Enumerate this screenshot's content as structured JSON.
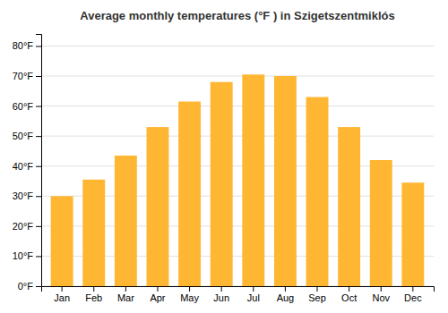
{
  "chart_data": {
    "type": "bar",
    "title": "Average monthly temperatures (°F ) in Szigetszentmiklós",
    "categories": [
      "Jan",
      "Feb",
      "Mar",
      "Apr",
      "May",
      "Jun",
      "Jul",
      "Aug",
      "Sep",
      "Oct",
      "Nov",
      "Dec"
    ],
    "values": [
      30.0,
      35.5,
      43.5,
      53.0,
      61.5,
      68.0,
      70.5,
      70.0,
      63.0,
      53.0,
      42.0,
      34.5
    ],
    "color": "#FFB733",
    "ylim": [
      0,
      84
    ],
    "yticks": [
      {
        "value": 0,
        "label": "0°F"
      },
      {
        "value": 10,
        "label": "10°F"
      },
      {
        "value": 20,
        "label": "20°F"
      },
      {
        "value": 30,
        "label": "30°F"
      },
      {
        "value": 40,
        "label": "40°F"
      },
      {
        "value": 50,
        "label": "50°F"
      },
      {
        "value": 60,
        "label": "60°F"
      },
      {
        "value": 70,
        "label": "70°F"
      },
      {
        "value": 80,
        "label": "80°F"
      }
    ],
    "grid": true
  }
}
